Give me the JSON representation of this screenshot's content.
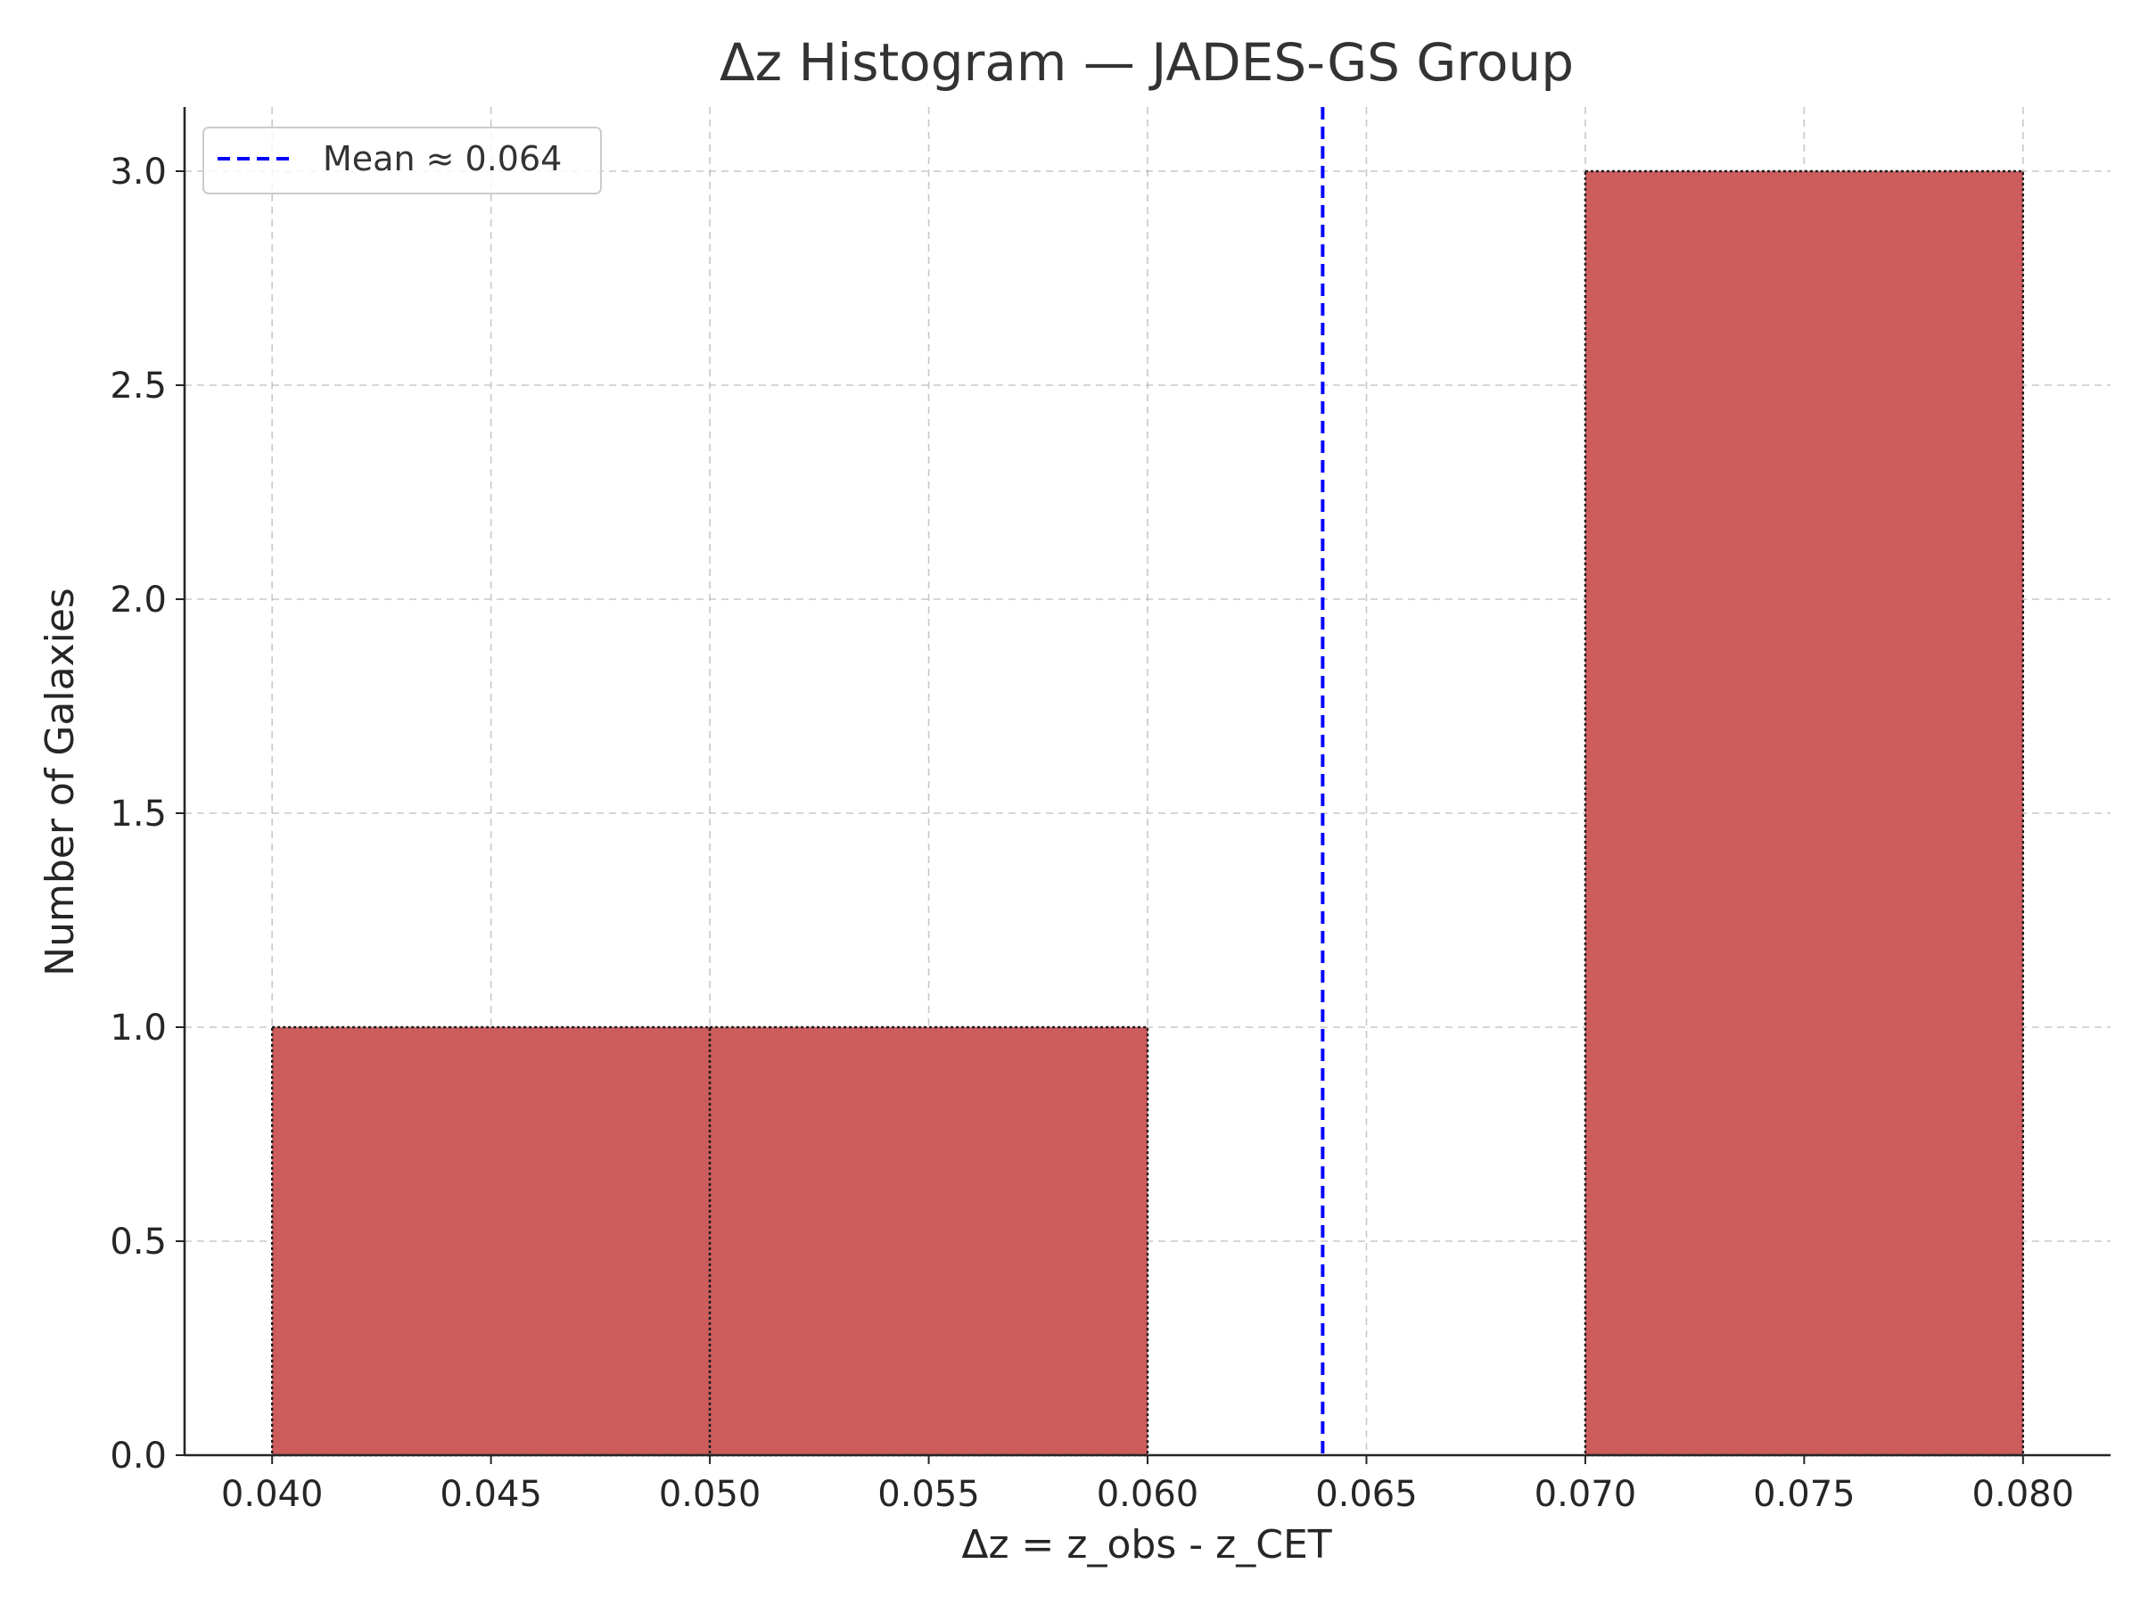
{
  "chart_data": {
    "type": "bar",
    "title": "Δz Histogram — JADES-GS Group",
    "xlabel": "Δz = z_obs - z_CET",
    "ylabel": "Number of Galaxies",
    "xlim": [
      0.038,
      0.082
    ],
    "ylim": [
      0,
      3.15
    ],
    "xticks": [
      "0.040",
      "0.045",
      "0.050",
      "0.055",
      "0.060",
      "0.065",
      "0.070",
      "0.075",
      "0.080"
    ],
    "yticks": [
      "0.0",
      "0.5",
      "1.0",
      "1.5",
      "2.0",
      "2.5",
      "3.0"
    ],
    "grid": true,
    "bins": [
      {
        "x0": 0.04,
        "x1": 0.05,
        "count": 1
      },
      {
        "x0": 0.05,
        "x1": 0.06,
        "count": 1
      },
      {
        "x0": 0.06,
        "x1": 0.07,
        "count": 0
      },
      {
        "x0": 0.07,
        "x1": 0.08,
        "count": 3
      }
    ],
    "bar_color": "#cd5c5c",
    "mean_line": {
      "value": 0.064,
      "label": "Mean ≈ 0.064",
      "color": "#0000ff"
    },
    "legend_position": "top-left"
  }
}
